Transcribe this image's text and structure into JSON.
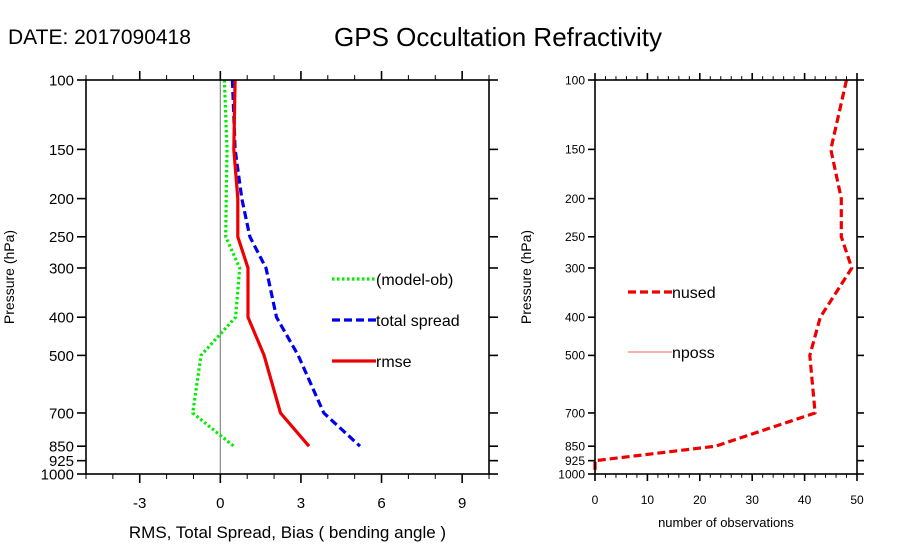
{
  "header": {
    "date_label": "DATE: 2017090418",
    "title": "GPS Occultation Refractivity"
  },
  "chart_data": [
    {
      "type": "line",
      "title": "GPS Occultation Refractivity",
      "xlabel": "RMS, Total Spread, Bias ( bending angle )",
      "ylabel": "Pressure (hPa)",
      "xlim": [
        -5,
        10
      ],
      "ylim": [
        1000,
        100
      ],
      "yscale": "log",
      "y_reversed": true,
      "x_ticks": [
        -3,
        0,
        3,
        6,
        9
      ],
      "x_tick_labels": [
        "-3",
        "0",
        "3",
        "6",
        "9"
      ],
      "x_minor_step": 1,
      "y_ticks": [
        100,
        150,
        200,
        250,
        300,
        400,
        500,
        700,
        850,
        925,
        1000
      ],
      "y_tick_labels": [
        "100",
        "150",
        "200",
        "250",
        "300",
        "400",
        "500",
        "700",
        "850",
        "925",
        "1000"
      ],
      "zero_line": true,
      "grid": false,
      "legend_placement": "right-middle",
      "series": [
        {
          "name": "(model-ob)",
          "color": "#00ee00",
          "style": "dotted",
          "y": [
            100,
            150,
            200,
            250,
            300,
            400,
            500,
            700,
            850
          ],
          "x": [
            0.15,
            0.25,
            0.22,
            0.2,
            0.72,
            0.57,
            -0.72,
            -1.03,
            0.5
          ]
        },
        {
          "name": "total spread",
          "color": "#0000ee",
          "style": "dashed",
          "y": [
            100,
            150,
            200,
            250,
            300,
            400,
            500,
            700,
            850
          ],
          "x": [
            0.45,
            0.55,
            0.8,
            1.1,
            1.7,
            2.09,
            2.9,
            3.85,
            5.2
          ]
        },
        {
          "name": "rmse",
          "color": "#ee0000",
          "style": "solid",
          "y": [
            100,
            150,
            200,
            250,
            300,
            400,
            500,
            700,
            850
          ],
          "x": [
            0.55,
            0.5,
            0.65,
            0.65,
            1.03,
            1.03,
            1.63,
            2.24,
            3.3
          ]
        }
      ]
    },
    {
      "type": "line",
      "title": "",
      "xlabel": "number of observations",
      "ylabel": "Pressure (hPa)",
      "xlim": [
        0,
        50
      ],
      "ylim": [
        1000,
        100
      ],
      "yscale": "log",
      "y_reversed": true,
      "x_ticks": [
        0,
        10,
        20,
        30,
        40,
        50
      ],
      "x_tick_labels": [
        "0",
        "10",
        "20",
        "30",
        "40",
        "50"
      ],
      "x_minor_step": 2,
      "y_ticks": [
        100,
        150,
        200,
        250,
        300,
        400,
        500,
        700,
        850,
        925,
        1000
      ],
      "y_tick_labels": [
        "100",
        "150",
        "200",
        "250",
        "300",
        "400",
        "500",
        "700",
        "850",
        "925",
        "1000"
      ],
      "grid": false,
      "legend_placement": "left-middle",
      "series": [
        {
          "name": "nused",
          "color": "#ee0000",
          "style": "dashed",
          "y": [
            100,
            150,
            200,
            250,
            300,
            400,
            500,
            700,
            850,
            925,
            1000
          ],
          "x": [
            48,
            45,
            47,
            47,
            49,
            43,
            41,
            42,
            23,
            0,
            0
          ]
        },
        {
          "name": "nposs",
          "color": "#f08080",
          "style": "thin-solid",
          "y": [],
          "x": []
        }
      ]
    }
  ]
}
